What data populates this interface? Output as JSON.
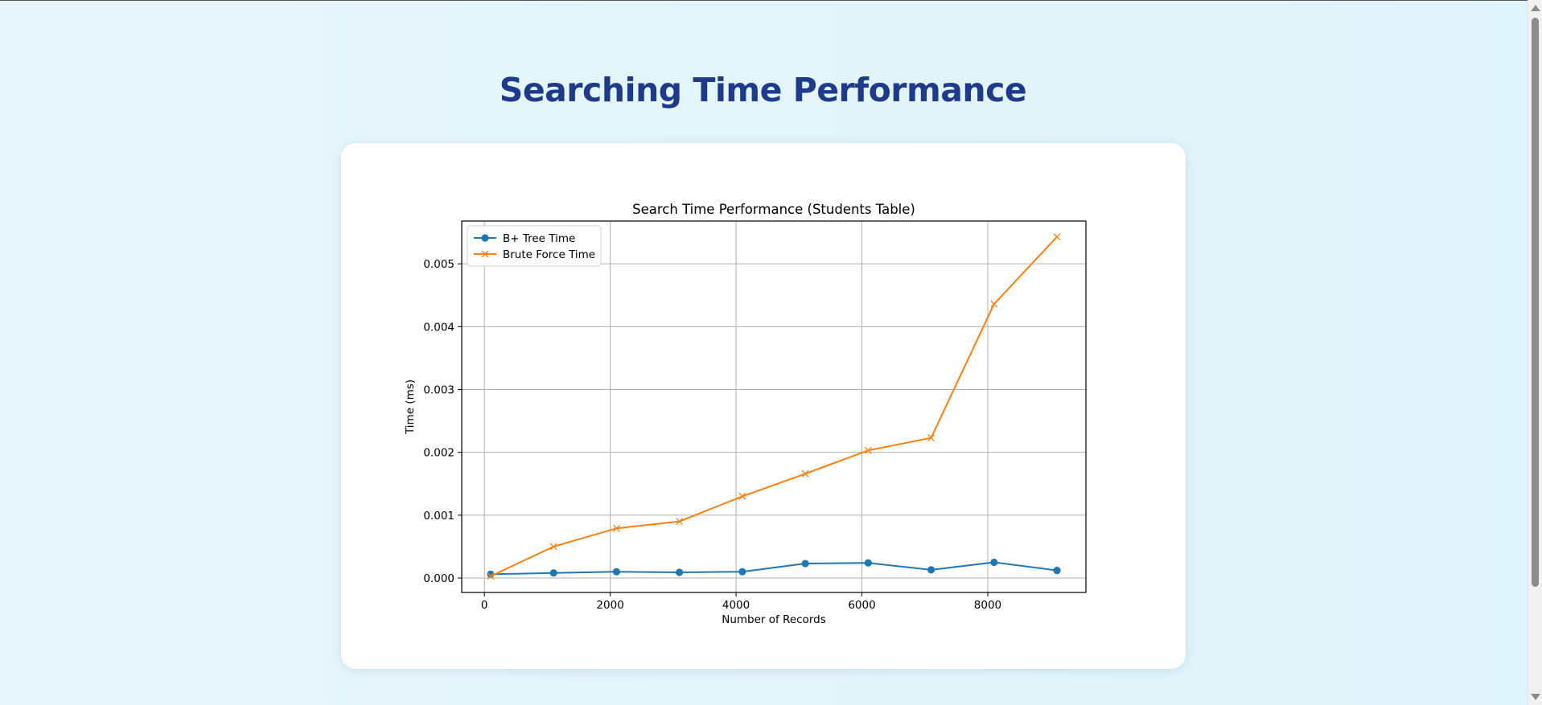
{
  "page": {
    "title": "Searching Time Performance"
  },
  "chart_data": {
    "type": "line",
    "title": "Search Time Performance (Students Table)",
    "xlabel": "Number of Records",
    "ylabel": "Time (ms)",
    "x": [
      100,
      1100,
      2100,
      3100,
      4100,
      5100,
      6100,
      7100,
      8100,
      9100
    ],
    "xlim": [
      -360,
      9560
    ],
    "ylim": [
      -0.00023,
      0.00568
    ],
    "xticks": [
      0,
      2000,
      4000,
      6000,
      8000
    ],
    "xtick_labels": [
      "0",
      "2000",
      "4000",
      "6000",
      "8000"
    ],
    "yticks": [
      0.0,
      0.001,
      0.002,
      0.003,
      0.004,
      0.005
    ],
    "ytick_labels": [
      "0.000",
      "0.001",
      "0.002",
      "0.003",
      "0.004",
      "0.005"
    ],
    "grid": true,
    "legend_position": "top-left",
    "series": [
      {
        "name": "B+ Tree Time",
        "color": "#1f77b4",
        "marker": "circle",
        "values": [
          6e-05,
          8e-05,
          0.0001,
          9e-05,
          0.0001,
          0.00023,
          0.00024,
          0.00013,
          0.00025,
          0.00012
        ]
      },
      {
        "name": "Brute Force Time",
        "color": "#ff7f0e",
        "marker": "x",
        "values": [
          3e-05,
          0.0005,
          0.00079,
          0.0009,
          0.0013,
          0.00166,
          0.00203,
          0.00223,
          0.00436,
          0.00543
        ]
      }
    ]
  }
}
